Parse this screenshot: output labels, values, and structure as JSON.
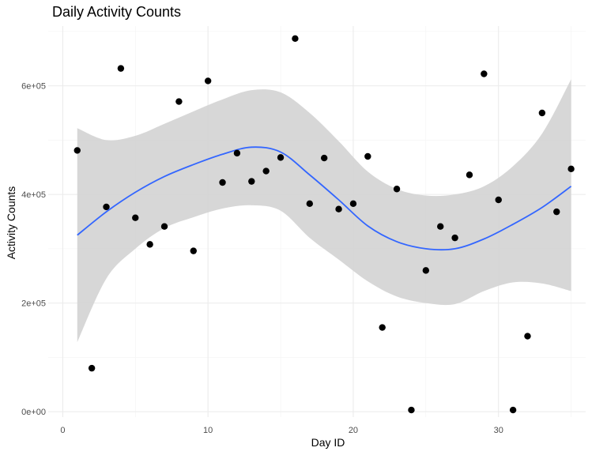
{
  "chart_data": {
    "type": "scatter",
    "title": "Daily Activity Counts",
    "xlabel": "Day ID",
    "ylabel": "Activity Counts",
    "xlim": [
      -1,
      36
    ],
    "ylim": [
      -10000,
      710000
    ],
    "x_ticks": [
      0,
      10,
      20,
      30
    ],
    "x_tick_labels": [
      "0",
      "10",
      "20",
      "30"
    ],
    "y_ticks": [
      0,
      200000,
      400000,
      600000
    ],
    "y_tick_labels": [
      "0e+00",
      "2e+05",
      "4e+05",
      "6e+05"
    ],
    "grid": true,
    "series": [
      {
        "type": "scatter",
        "color": "#000000",
        "x": [
          1,
          2,
          3,
          4,
          5,
          6,
          7,
          8,
          9,
          10,
          11,
          12,
          13,
          14,
          15,
          16,
          17,
          18,
          19,
          20,
          21,
          22,
          23,
          24,
          25,
          26,
          27,
          28,
          29,
          30,
          31,
          32,
          33,
          34,
          35
        ],
        "y": [
          481000,
          80000,
          377000,
          632000,
          357000,
          308000,
          341000,
          571000,
          296000,
          609000,
          422000,
          476000,
          424000,
          443000,
          468000,
          687000,
          383000,
          467000,
          373000,
          383000,
          470000,
          155000,
          410000,
          3000,
          260000,
          341000,
          320000,
          436000,
          622000,
          390000,
          3000,
          139000,
          550000,
          368000,
          447000
        ]
      },
      {
        "type": "smooth",
        "color": "#3366FF",
        "band_color": "#D3D3D3",
        "x": [
          1,
          3,
          5,
          7,
          9,
          11,
          13,
          15,
          17,
          19,
          21,
          23,
          25,
          27,
          29,
          31,
          33,
          35
        ],
        "y": [
          325000,
          368000,
          404000,
          433000,
          455000,
          474000,
          487000,
          478000,
          436000,
          390000,
          342000,
          313000,
          300000,
          300000,
          318000,
          345000,
          376000,
          415000
        ],
        "lower": [
          128000,
          245000,
          300000,
          338000,
          358000,
          374000,
          380000,
          370000,
          320000,
          280000,
          240000,
          212000,
          200000,
          198000,
          222000,
          238000,
          236000,
          222000
        ],
        "upper": [
          522000,
          500000,
          508000,
          530000,
          553000,
          575000,
          592000,
          588000,
          550000,
          498000,
          442000,
          410000,
          398000,
          400000,
          415000,
          452000,
          512000,
          612000
        ]
      }
    ]
  }
}
